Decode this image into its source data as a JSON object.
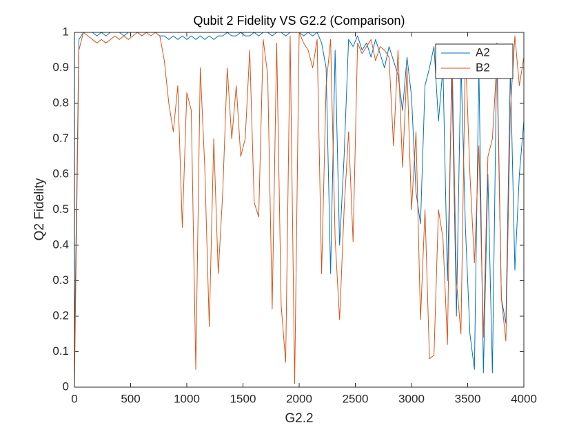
{
  "chart_data": {
    "type": "line",
    "title": "Qubit 2 Fidelity VS G2.2 (Comparison)",
    "x_label": "G2.2",
    "y_label": "Q2 Fidelity",
    "x": [
      0,
      40,
      80,
      120,
      160,
      200,
      240,
      280,
      320,
      360,
      400,
      440,
      480,
      520,
      560,
      600,
      640,
      680,
      720,
      760,
      800,
      840,
      880,
      920,
      960,
      1000,
      1040,
      1080,
      1120,
      1160,
      1200,
      1240,
      1280,
      1320,
      1360,
      1400,
      1440,
      1480,
      1520,
      1560,
      1600,
      1640,
      1680,
      1720,
      1760,
      1800,
      1840,
      1880,
      1920,
      1960,
      2000,
      2040,
      2080,
      2120,
      2160,
      2200,
      2240,
      2280,
      2320,
      2360,
      2400,
      2440,
      2480,
      2520,
      2560,
      2600,
      2640,
      2680,
      2720,
      2760,
      2800,
      2840,
      2880,
      2920,
      2960,
      3000,
      3040,
      3080,
      3120,
      3160,
      3200,
      3240,
      3280,
      3320,
      3360,
      3400,
      3440,
      3480,
      3520,
      3560,
      3600,
      3640,
      3680,
      3720,
      3760,
      3800,
      3840,
      3880,
      3920,
      3960,
      4000
    ],
    "series": [
      {
        "name": "A2",
        "color": "#0072bd",
        "values": [
          0.1,
          0.98,
          1,
          1,
          1,
          0.99,
          1,
          0.99,
          1,
          1,
          1,
          0.99,
          1,
          1,
          1,
          0.99,
          1,
          1,
          1,
          0.99,
          0.99,
          0.98,
          0.99,
          0.98,
          0.99,
          0.98,
          0.99,
          0.98,
          0.99,
          0.98,
          0.99,
          0.98,
          0.99,
          0.99,
          1,
          0.99,
          0.99,
          1,
          0.99,
          0.99,
          1,
          0.99,
          1,
          1,
          0.99,
          1,
          1,
          0.99,
          1,
          1,
          1,
          0.99,
          1,
          0.99,
          1,
          0.97,
          0.9,
          0.32,
          0.95,
          0.4,
          0.65,
          0.98,
          0.96,
          0.99,
          0.95,
          0.97,
          0.93,
          0.98,
          0.94,
          0.9,
          0.96,
          0.92,
          0.88,
          0.78,
          0.93,
          0.82,
          0.55,
          0.46,
          0.85,
          0.9,
          0.96,
          0.75,
          0.9,
          0.3,
          0.88,
          0.2,
          0.92,
          0.45,
          0.15,
          0.05,
          0.9,
          0.04,
          0.6,
          0.04,
          0.97,
          0.25,
          0.18,
          0.9,
          0.33,
          0.6,
          0.75
        ]
      },
      {
        "name": "B2",
        "color": "#d95319",
        "values": [
          0,
          0.95,
          1,
          0.99,
          0.98,
          0.97,
          0.98,
          0.97,
          0.98,
          0.99,
          0.98,
          0.99,
          0.98,
          0.99,
          1,
          0.99,
          1,
          0.99,
          1,
          0.99,
          0.92,
          0.8,
          0.72,
          0.85,
          0.45,
          0.83,
          0.78,
          0.05,
          0.9,
          0.62,
          0.17,
          0.7,
          0.32,
          0.55,
          0.9,
          0.7,
          0.85,
          0.65,
          0.7,
          0.95,
          0.52,
          0.48,
          0.98,
          0.88,
          0.22,
          0.97,
          0.23,
          0.07,
          0.99,
          0.01,
          1,
          0.97,
          0.95,
          0.9,
          0.98,
          0.32,
          0.85,
          0.98,
          0.42,
          0.19,
          0.5,
          0.72,
          0.41,
          0.97,
          0.94,
          0.96,
          0.98,
          0.92,
          0.96,
          0.95,
          0.93,
          0.68,
          0.95,
          0.62,
          0.9,
          0.5,
          0.72,
          0.19,
          0.5,
          0.08,
          0.09,
          0.5,
          0.42,
          0.12,
          0.96,
          0.3,
          0.15,
          0.95,
          0.6,
          0.35,
          0.68,
          0.14,
          0.65,
          0.7,
          0.92,
          0.25,
          0.13,
          0.78,
          0.99,
          0.85,
          0.93
        ]
      }
    ],
    "xlim": [
      0,
      4000
    ],
    "xticks": [
      0,
      500,
      1000,
      1500,
      2000,
      2500,
      3000,
      3500,
      4000
    ],
    "ylim": [
      0,
      1
    ],
    "yticks": [
      0,
      0.1,
      0.2,
      0.3,
      0.4,
      0.5,
      0.6,
      0.7,
      0.8,
      0.9,
      1
    ],
    "grid": false,
    "legend": "top-right"
  }
}
